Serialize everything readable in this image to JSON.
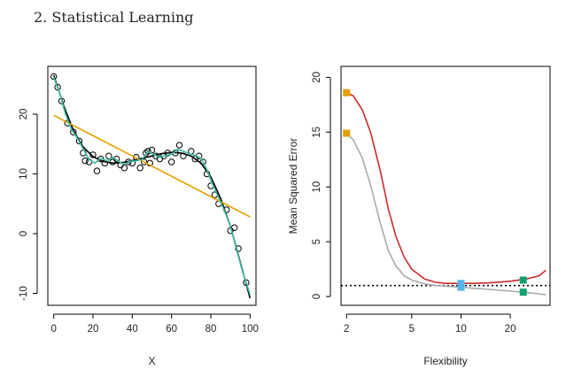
{
  "header": {
    "title": "2. Statistical Learning"
  },
  "chart_data": [
    {
      "type": "scatter",
      "xlabel": "X",
      "ylabel": "",
      "xlim": [
        -3,
        103
      ],
      "ylim": [
        -12,
        28
      ],
      "x_ticks": [
        0,
        20,
        40,
        60,
        80,
        100
      ],
      "y_ticks": [
        -10,
        0,
        10,
        20
      ],
      "grid": false,
      "points": [
        [
          0,
          26.3
        ],
        [
          2,
          24.5
        ],
        [
          4,
          22.2
        ],
        [
          7,
          18.5
        ],
        [
          10,
          17
        ],
        [
          13,
          15.5
        ],
        [
          15,
          13.5
        ],
        [
          16,
          12.2
        ],
        [
          18,
          12
        ],
        [
          20,
          13.2
        ],
        [
          22,
          10.5
        ],
        [
          24,
          12.5
        ],
        [
          26,
          11.8
        ],
        [
          28,
          13
        ],
        [
          30,
          12
        ],
        [
          32,
          12.5
        ],
        [
          34,
          11.5
        ],
        [
          36,
          11
        ],
        [
          38,
          12
        ],
        [
          40,
          11.8
        ],
        [
          42,
          12.8
        ],
        [
          44,
          11
        ],
        [
          46,
          12
        ],
        [
          47,
          13.5
        ],
        [
          48,
          13.8
        ],
        [
          49,
          11.8
        ],
        [
          50,
          14
        ],
        [
          52,
          13
        ],
        [
          54,
          12.5
        ],
        [
          56,
          13
        ],
        [
          58,
          13.5
        ],
        [
          60,
          12
        ],
        [
          62,
          13.5
        ],
        [
          64,
          14.8
        ],
        [
          66,
          13
        ],
        [
          70,
          13.8
        ],
        [
          72,
          12.5
        ],
        [
          74,
          13
        ],
        [
          76,
          12
        ],
        [
          78,
          10
        ],
        [
          80,
          8
        ],
        [
          82,
          6.5
        ],
        [
          84,
          5
        ],
        [
          88,
          4
        ],
        [
          90,
          0.5
        ],
        [
          92,
          1
        ],
        [
          94,
          -2.5
        ],
        [
          98,
          -8.2
        ]
      ],
      "series": [
        {
          "color": "#000000",
          "x": [
            0,
            5,
            10,
            15,
            20,
            25,
            30,
            35,
            40,
            45,
            50,
            55,
            60,
            65,
            70,
            75,
            80,
            85,
            90,
            95,
            100
          ],
          "y": [
            26.5,
            21.5,
            17.3,
            14.5,
            12.9,
            12.1,
            11.8,
            11.9,
            12.2,
            12.6,
            13.0,
            13.4,
            13.6,
            13.5,
            13.0,
            11.8,
            9.5,
            5.9,
            1.2,
            -4.8,
            -10.8
          ]
        },
        {
          "color": "#e69f00",
          "x": [
            0,
            100
          ],
          "y": [
            19.8,
            2.8
          ]
        },
        {
          "color": "#3cb9a0",
          "x": [
            0,
            3,
            6,
            9,
            12,
            15,
            18,
            21,
            24,
            27,
            30,
            33,
            36,
            39,
            42,
            45,
            48,
            51,
            54,
            57,
            60,
            63,
            66,
            69,
            72,
            75,
            78,
            81,
            84,
            87,
            90,
            93,
            96,
            100
          ],
          "y": [
            26.2,
            23.5,
            20,
            17.5,
            16,
            14.2,
            12.4,
            11.8,
            12.6,
            12.2,
            12.8,
            12.1,
            11.6,
            12.1,
            12.2,
            12.4,
            13.8,
            13.2,
            12.8,
            13.1,
            13.3,
            14.1,
            13.8,
            13.4,
            13.1,
            12.6,
            10.7,
            8.2,
            6,
            3.8,
            1.2,
            -2.5,
            -6.2,
            -10.2
          ]
        }
      ]
    },
    {
      "type": "line",
      "xlabel": "Flexibility",
      "ylabel": "Mean Squared Error",
      "x_scale": "log",
      "xlim": [
        1.85,
        35
      ],
      "ylim": [
        -0.8,
        21
      ],
      "x_ticks": [
        2,
        5,
        10,
        20
      ],
      "y_ticks": [
        0,
        5,
        10,
        15,
        20
      ],
      "grid": false,
      "reference_line": {
        "y": 1.0,
        "style": "dotted",
        "color": "#000000"
      },
      "series": [
        {
          "color": "#cc2a2a",
          "x": [
            2,
            2.2,
            2.5,
            2.8,
            3.2,
            3.6,
            4,
            4.5,
            5,
            6,
            7,
            8,
            10,
            12,
            15,
            20,
            25,
            30,
            33
          ],
          "y": [
            18.6,
            18.3,
            17,
            15,
            11.6,
            8,
            5.5,
            3.6,
            2.5,
            1.6,
            1.3,
            1.2,
            1.2,
            1.2,
            1.25,
            1.4,
            1.6,
            1.9,
            2.4
          ]
        },
        {
          "color": "#aaaaaa",
          "x": [
            2,
            2.2,
            2.5,
            2.8,
            3.2,
            3.6,
            4,
            4.5,
            5,
            6,
            7,
            8,
            10,
            12,
            15,
            20,
            25,
            30,
            33
          ],
          "y": [
            14.9,
            14.3,
            12.6,
            10.2,
            6.8,
            4.2,
            2.8,
            1.9,
            1.5,
            1.15,
            1.0,
            0.95,
            0.85,
            0.75,
            0.65,
            0.5,
            0.38,
            0.25,
            0.15
          ]
        }
      ],
      "markers": [
        {
          "x": 2,
          "y": 18.6,
          "color": "#e69f00"
        },
        {
          "x": 2,
          "y": 14.9,
          "color": "#e69f00"
        },
        {
          "x": 10,
          "y": 1.2,
          "color": "#56b4e9"
        },
        {
          "x": 10,
          "y": 0.85,
          "color": "#56b4e9"
        },
        {
          "x": 24,
          "y": 1.5,
          "color": "#11a072"
        },
        {
          "x": 24,
          "y": 0.4,
          "color": "#11a072"
        }
      ]
    }
  ]
}
